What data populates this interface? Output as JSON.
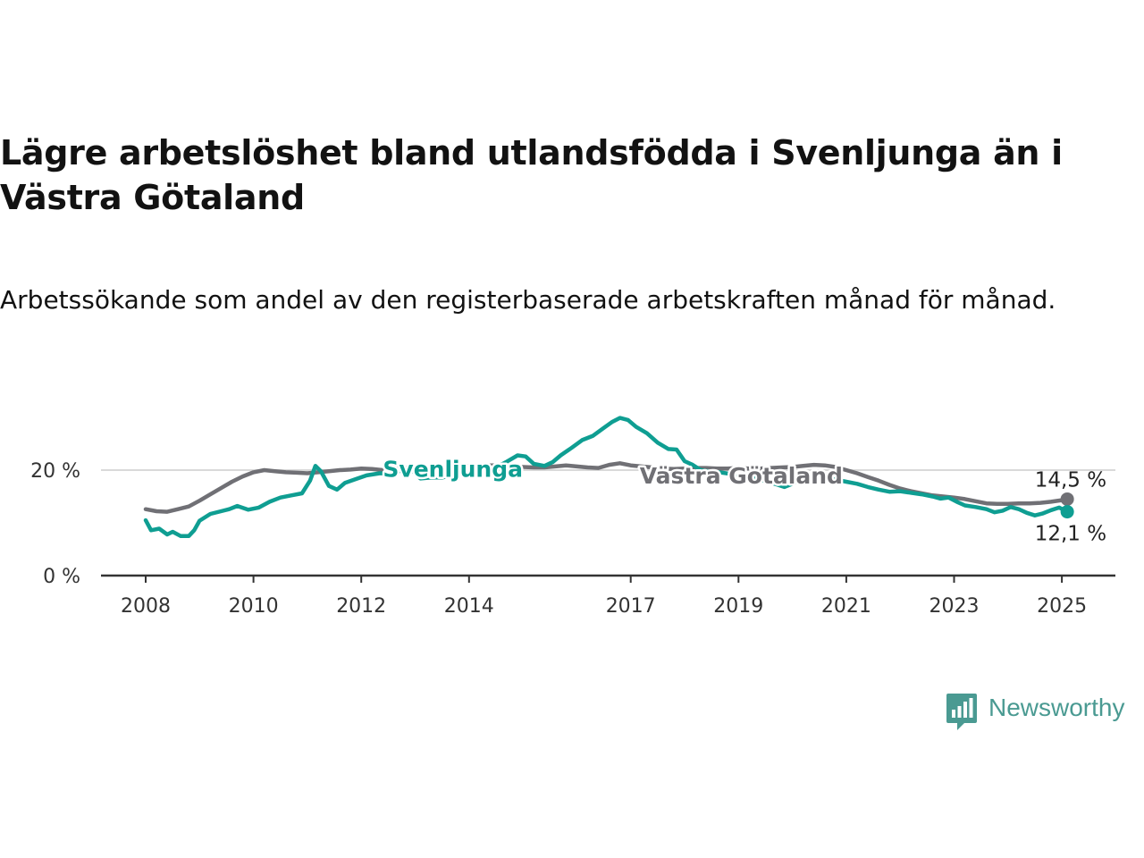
{
  "title": "Lägre arbetslöshet bland utlandsfödda i Svenljunga än i Västra Götaland",
  "subtitle": "Arbetssökande som andel av den registerbaserade arbetskraften månad för månad.",
  "brand": {
    "name": "Newsworthy",
    "color": "#4a9a92",
    "icon": "newsworthy-chart-bubble-icon"
  },
  "chart_data": {
    "type": "line",
    "ylim": [
      0,
      30
    ],
    "yticks": [
      {
        "v": 0,
        "label": "0 %"
      },
      {
        "v": 20,
        "label": "20 %"
      }
    ],
    "xticks": [
      {
        "t": 2008.0,
        "label": "2008"
      },
      {
        "t": 2010.0,
        "label": "2010"
      },
      {
        "t": 2012.0,
        "label": "2012"
      },
      {
        "t": 2014.0,
        "label": "2014"
      },
      {
        "t": 2017.0,
        "label": "2017"
      },
      {
        "t": 2019.0,
        "label": "2019"
      },
      {
        "t": 2021.0,
        "label": "2021"
      },
      {
        "t": 2023.0,
        "label": "2023"
      },
      {
        "t": 2025.0,
        "label": "2025"
      }
    ],
    "grid_y": [
      20
    ],
    "series": [
      {
        "name": "Västra Götaland",
        "color": "#707075",
        "end_label": "14,5 %",
        "points": [
          [
            2008.0,
            12.6
          ],
          [
            2008.2,
            12.2
          ],
          [
            2008.4,
            12.1
          ],
          [
            2008.6,
            12.6
          ],
          [
            2008.8,
            13.1
          ],
          [
            2009.0,
            14.2
          ],
          [
            2009.2,
            15.4
          ],
          [
            2009.4,
            16.6
          ],
          [
            2009.6,
            17.8
          ],
          [
            2009.8,
            18.8
          ],
          [
            2010.0,
            19.6
          ],
          [
            2010.2,
            20.0
          ],
          [
            2010.4,
            19.8
          ],
          [
            2010.6,
            19.6
          ],
          [
            2010.8,
            19.5
          ],
          [
            2011.0,
            19.4
          ],
          [
            2011.2,
            19.6
          ],
          [
            2011.4,
            19.8
          ],
          [
            2011.6,
            20.0
          ],
          [
            2011.8,
            20.1
          ],
          [
            2012.0,
            20.3
          ],
          [
            2012.2,
            20.2
          ],
          [
            2012.4,
            20.0
          ],
          [
            2012.6,
            20.2
          ],
          [
            2012.8,
            20.4
          ],
          [
            2013.0,
            20.5
          ],
          [
            2013.2,
            20.4
          ],
          [
            2013.4,
            20.3
          ],
          [
            2013.6,
            20.5
          ],
          [
            2013.8,
            20.6
          ],
          [
            2014.0,
            20.8
          ],
          [
            2014.2,
            20.9
          ],
          [
            2014.4,
            20.9
          ],
          [
            2014.6,
            20.9
          ],
          [
            2014.8,
            20.7
          ],
          [
            2015.0,
            20.6
          ],
          [
            2015.2,
            20.5
          ],
          [
            2015.4,
            20.5
          ],
          [
            2015.6,
            20.7
          ],
          [
            2015.8,
            20.9
          ],
          [
            2016.0,
            20.7
          ],
          [
            2016.2,
            20.5
          ],
          [
            2016.4,
            20.4
          ],
          [
            2016.6,
            21.0
          ],
          [
            2016.8,
            21.3
          ],
          [
            2017.0,
            20.9
          ],
          [
            2017.2,
            20.7
          ],
          [
            2017.4,
            20.5
          ],
          [
            2017.6,
            20.3
          ],
          [
            2017.8,
            20.2
          ],
          [
            2018.0,
            20.3
          ],
          [
            2018.2,
            20.4
          ],
          [
            2018.4,
            20.4
          ],
          [
            2018.6,
            20.3
          ],
          [
            2018.8,
            20.3
          ],
          [
            2019.0,
            20.4
          ],
          [
            2019.2,
            20.3
          ],
          [
            2019.4,
            20.3
          ],
          [
            2019.6,
            20.4
          ],
          [
            2019.8,
            20.5
          ],
          [
            2020.0,
            20.6
          ],
          [
            2020.2,
            20.8
          ],
          [
            2020.4,
            21.0
          ],
          [
            2020.6,
            20.9
          ],
          [
            2020.8,
            20.6
          ],
          [
            2021.0,
            20.0
          ],
          [
            2021.2,
            19.4
          ],
          [
            2021.4,
            18.7
          ],
          [
            2021.6,
            18.0
          ],
          [
            2021.8,
            17.2
          ],
          [
            2022.0,
            16.5
          ],
          [
            2022.2,
            16.0
          ],
          [
            2022.4,
            15.6
          ],
          [
            2022.6,
            15.2
          ],
          [
            2022.8,
            15.0
          ],
          [
            2023.0,
            14.8
          ],
          [
            2023.2,
            14.5
          ],
          [
            2023.4,
            14.1
          ],
          [
            2023.6,
            13.7
          ],
          [
            2023.8,
            13.6
          ],
          [
            2024.0,
            13.6
          ],
          [
            2024.2,
            13.7
          ],
          [
            2024.4,
            13.7
          ],
          [
            2024.6,
            13.8
          ],
          [
            2024.8,
            14.0
          ],
          [
            2025.0,
            14.3
          ],
          [
            2025.1,
            14.5
          ]
        ]
      },
      {
        "name": "Svenljunga",
        "color": "#0f9e92",
        "end_label": "12,1 %",
        "points": [
          [
            2008.0,
            10.5
          ],
          [
            2008.1,
            8.6
          ],
          [
            2008.25,
            8.9
          ],
          [
            2008.4,
            7.8
          ],
          [
            2008.5,
            8.3
          ],
          [
            2008.65,
            7.5
          ],
          [
            2008.8,
            7.5
          ],
          [
            2008.9,
            8.6
          ],
          [
            2009.0,
            10.4
          ],
          [
            2009.2,
            11.7
          ],
          [
            2009.4,
            12.2
          ],
          [
            2009.55,
            12.6
          ],
          [
            2009.7,
            13.2
          ],
          [
            2009.9,
            12.5
          ],
          [
            2010.1,
            12.9
          ],
          [
            2010.3,
            14.0
          ],
          [
            2010.5,
            14.8
          ],
          [
            2010.7,
            15.2
          ],
          [
            2010.9,
            15.6
          ],
          [
            2011.05,
            18.0
          ],
          [
            2011.15,
            20.8
          ],
          [
            2011.25,
            19.8
          ],
          [
            2011.4,
            17.0
          ],
          [
            2011.55,
            16.3
          ],
          [
            2011.7,
            17.6
          ],
          [
            2011.9,
            18.3
          ],
          [
            2012.1,
            19.0
          ],
          [
            2012.35,
            19.4
          ],
          [
            2012.5,
            19.3
          ],
          [
            2012.7,
            19.8
          ],
          [
            2012.9,
            20.4
          ],
          [
            2013.1,
            18.4
          ],
          [
            2013.3,
            18.6
          ],
          [
            2013.5,
            18.6
          ],
          [
            2013.7,
            19.0
          ],
          [
            2013.9,
            19.4
          ],
          [
            2014.1,
            20.2
          ],
          [
            2014.3,
            20.1
          ],
          [
            2014.5,
            20.5
          ],
          [
            2014.7,
            21.6
          ],
          [
            2014.9,
            22.8
          ],
          [
            2015.05,
            22.6
          ],
          [
            2015.2,
            21.2
          ],
          [
            2015.4,
            20.8
          ],
          [
            2015.55,
            21.5
          ],
          [
            2015.7,
            22.8
          ],
          [
            2015.9,
            24.2
          ],
          [
            2016.1,
            25.7
          ],
          [
            2016.3,
            26.5
          ],
          [
            2016.5,
            28.0
          ],
          [
            2016.65,
            29.1
          ],
          [
            2016.8,
            29.9
          ],
          [
            2016.95,
            29.5
          ],
          [
            2017.1,
            28.2
          ],
          [
            2017.3,
            27.0
          ],
          [
            2017.5,
            25.2
          ],
          [
            2017.7,
            24.0
          ],
          [
            2017.85,
            23.9
          ],
          [
            2018.0,
            21.7
          ],
          [
            2018.15,
            21.0
          ],
          [
            2018.3,
            20.0
          ],
          [
            2018.5,
            19.7
          ],
          [
            2018.7,
            19.5
          ],
          [
            2018.9,
            19.2
          ],
          [
            2019.1,
            18.8
          ],
          [
            2019.3,
            18.4
          ],
          [
            2019.5,
            17.9
          ],
          [
            2019.7,
            17.3
          ],
          [
            2019.85,
            16.8
          ],
          [
            2020.0,
            17.4
          ],
          [
            2020.2,
            18.4
          ],
          [
            2020.4,
            18.6
          ],
          [
            2020.6,
            18.5
          ],
          [
            2020.8,
            18.2
          ],
          [
            2021.0,
            17.8
          ],
          [
            2021.2,
            17.4
          ],
          [
            2021.4,
            16.8
          ],
          [
            2021.6,
            16.3
          ],
          [
            2021.8,
            15.9
          ],
          [
            2022.0,
            16.0
          ],
          [
            2022.2,
            15.7
          ],
          [
            2022.4,
            15.4
          ],
          [
            2022.6,
            15.0
          ],
          [
            2022.75,
            14.6
          ],
          [
            2022.9,
            14.8
          ],
          [
            2023.05,
            14.0
          ],
          [
            2023.2,
            13.3
          ],
          [
            2023.4,
            13.0
          ],
          [
            2023.6,
            12.6
          ],
          [
            2023.75,
            12.0
          ],
          [
            2023.9,
            12.3
          ],
          [
            2024.05,
            13.0
          ],
          [
            2024.2,
            12.6
          ],
          [
            2024.35,
            11.9
          ],
          [
            2024.5,
            11.4
          ],
          [
            2024.65,
            11.8
          ],
          [
            2024.8,
            12.4
          ],
          [
            2024.95,
            12.9
          ],
          [
            2025.1,
            12.1
          ]
        ]
      }
    ],
    "inline_labels": [
      {
        "text": "Svenljunga",
        "series": "Svenljunga",
        "t": 2013.7,
        "v": 18.7
      },
      {
        "text": "Västra Götaland",
        "series": "Västra Götaland",
        "t": 2019.05,
        "v": 17.5
      }
    ]
  }
}
